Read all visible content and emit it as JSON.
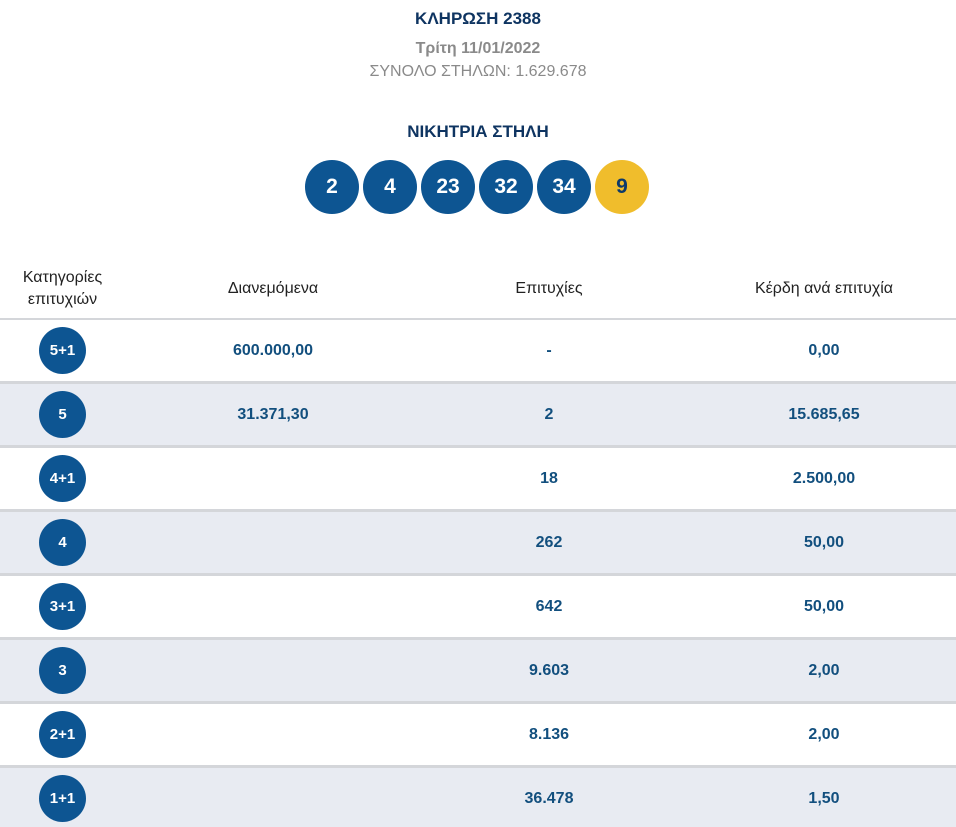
{
  "draw": {
    "title": "ΚΛΗΡΩΣΗ 2388",
    "date": "Τρίτη 11/01/2022",
    "total_columns": "ΣΥΝΟΛΟ ΣΤΗΛΩΝ: 1.629.678"
  },
  "winning": {
    "title": "ΝΙΚΗΤΡΙΑ ΣΤΗΛΗ",
    "numbers": [
      "2",
      "4",
      "23",
      "32",
      "34"
    ],
    "bonus": "9"
  },
  "table": {
    "headers": {
      "category": "Κατηγορίες επιτυχιών",
      "distributed": "Διανεμόμενα",
      "winners": "Επιτυχίες",
      "prize": "Κέρδη ανά επιτυχία"
    },
    "rows": [
      {
        "category": "5+1",
        "distributed": "600.000,00",
        "winners": "-",
        "prize": "0,00"
      },
      {
        "category": "5",
        "distributed": "31.371,30",
        "winners": "2",
        "prize": "15.685,65"
      },
      {
        "category": "4+1",
        "distributed": "",
        "winners": "18",
        "prize": "2.500,00"
      },
      {
        "category": "4",
        "distributed": "",
        "winners": "262",
        "prize": "50,00"
      },
      {
        "category": "3+1",
        "distributed": "",
        "winners": "642",
        "prize": "50,00"
      },
      {
        "category": "3",
        "distributed": "",
        "winners": "9.603",
        "prize": "2,00"
      },
      {
        "category": "2+1",
        "distributed": "",
        "winners": "8.136",
        "prize": "2,00"
      },
      {
        "category": "1+1",
        "distributed": "",
        "winners": "36.478",
        "prize": "1,50"
      }
    ]
  },
  "colors": {
    "primary_blue": "#0d5592",
    "bonus_yellow": "#f0bd2c",
    "heading_navy": "#0e3461",
    "value_blue": "#124f7e",
    "row_alt_bg": "#e8ebf2"
  }
}
